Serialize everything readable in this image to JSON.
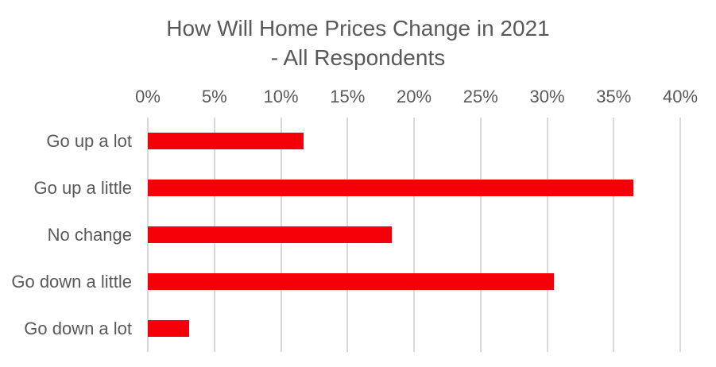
{
  "chart_data": {
    "type": "bar",
    "orientation": "horizontal",
    "title_line1": "How Will Home Prices Change in 2021",
    "title_line2": "- All Respondents",
    "categories": [
      "Go up a lot",
      "Go up a little",
      "No change",
      "Go down a little",
      "Go down a lot"
    ],
    "values": [
      11.7,
      36.5,
      18.3,
      30.5,
      3.1
    ],
    "value_unit": "%",
    "xlim": [
      0,
      40
    ],
    "x_ticks": [
      "0%",
      "5%",
      "10%",
      "15%",
      "20%",
      "25%",
      "30%",
      "35%",
      "40%"
    ],
    "x_tick_values": [
      0,
      5,
      10,
      15,
      20,
      25,
      30,
      35,
      40
    ],
    "x_axis_position": "top",
    "grid": true,
    "legend": false,
    "colors": {
      "bar": "#F40009",
      "text": "#595959",
      "gridline": "#D9D9D9",
      "background": "#FFFFFF"
    }
  }
}
